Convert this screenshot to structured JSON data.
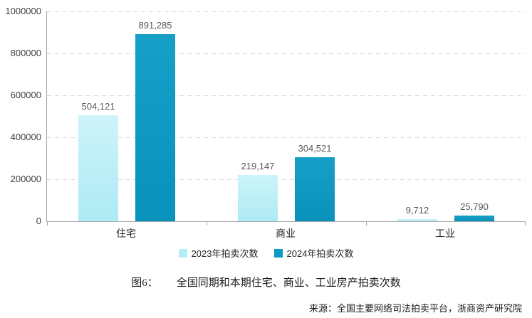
{
  "chart_data": {
    "type": "bar",
    "title": "全国同期和本期住宅、商业、工业房产拍卖次数",
    "categories": [
      "住宅",
      "商业",
      "工业"
    ],
    "series": [
      {
        "name": "2023年拍卖次数",
        "color": "#b5edf6",
        "values": [
          504121,
          219147,
          9712
        ]
      },
      {
        "name": "2024年拍卖次数",
        "color": "#0d99c2",
        "values": [
          891285,
          304521,
          25790
        ]
      }
    ],
    "ylim": [
      0,
      1000000
    ],
    "yticks": [
      0,
      200000,
      400000,
      600000,
      800000,
      1000000
    ],
    "grid": "horizontal-dashed",
    "legend_position": "bottom",
    "xlabel": "",
    "ylabel": ""
  },
  "caption": {
    "prefix": "图6：",
    "text": "全国同期和本期住宅、商业、工业房产拍卖次数"
  },
  "source": "来源：全国主要网络司法拍卖平台，浙商资产研究院",
  "colors": {
    "series_2023": "#b5edf6",
    "series_2024": "#0d99c2",
    "gridline": "#d8d8d8",
    "axis": "#a6a6a6",
    "value_label": "#595959"
  }
}
